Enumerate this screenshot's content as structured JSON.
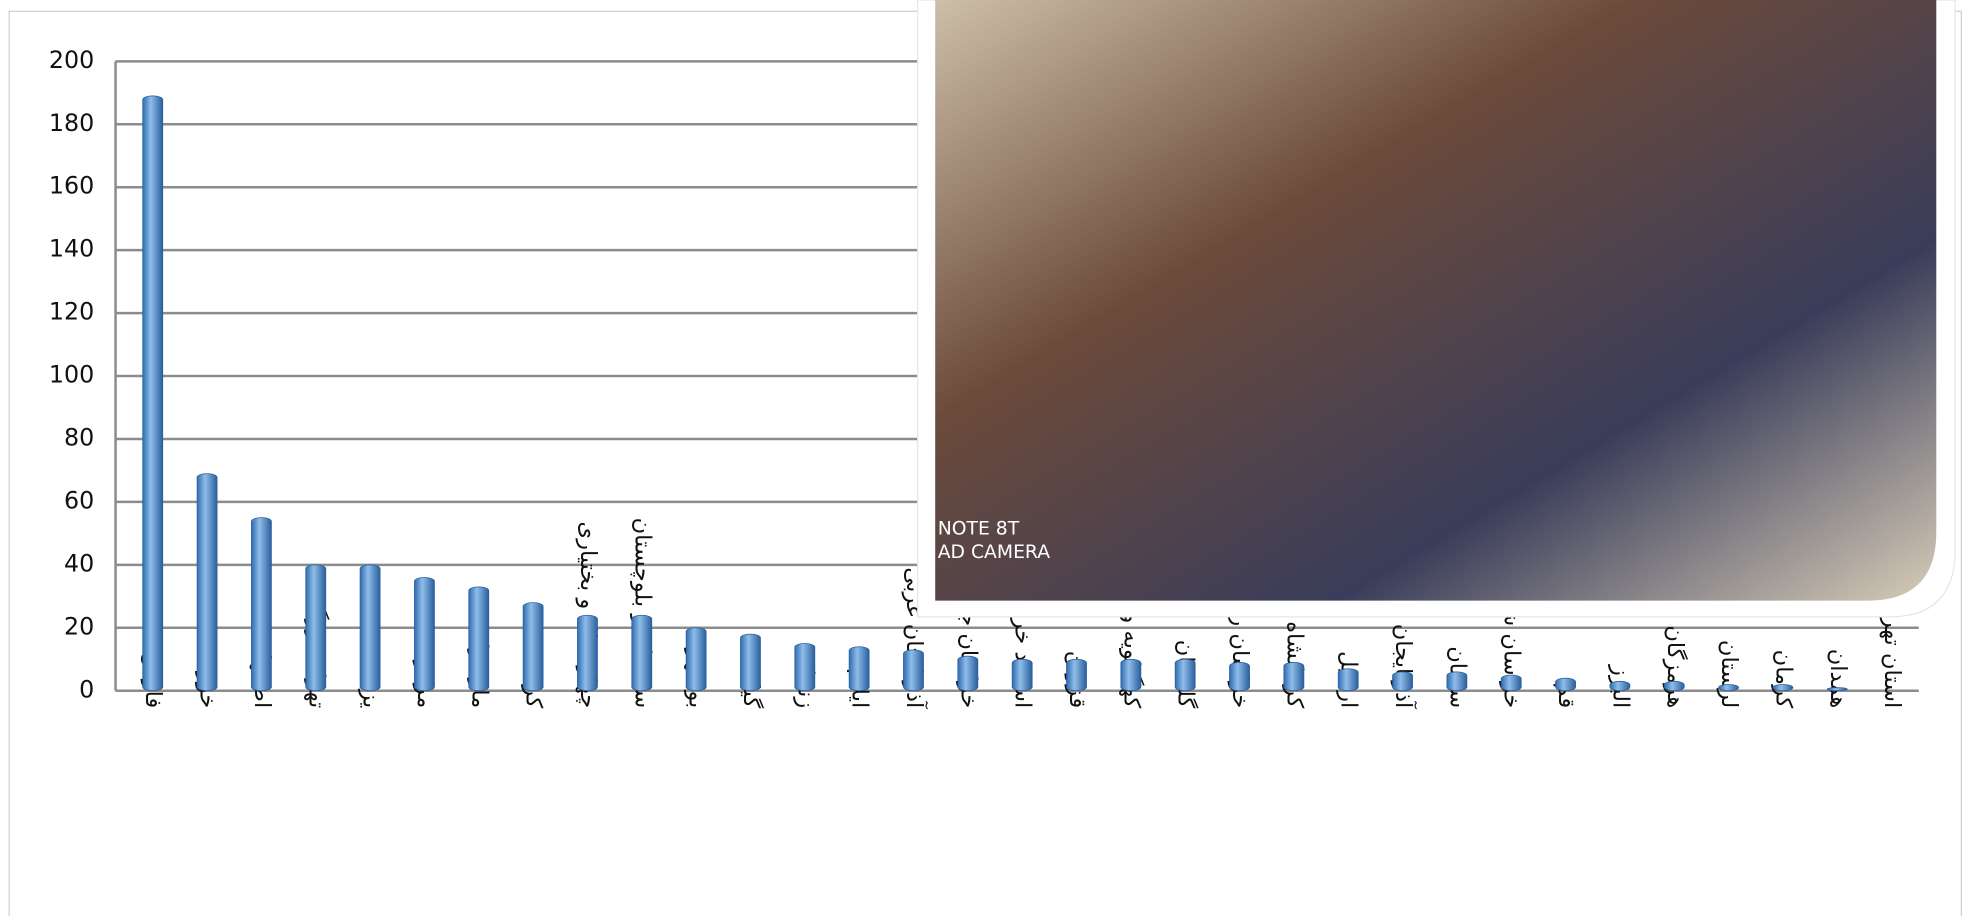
{
  "chart_data": {
    "type": "bar",
    "categories": [
      "فارس",
      "خوزستان",
      "اصفهان",
      "تهران بزرگ",
      "یزد",
      "مرکزی",
      "مازندران",
      "کردستان",
      "چهارمحال و بختیاری",
      "سیستان و بلوچستان",
      "بوشهر",
      "گیلان",
      "زنجان",
      "ایلام",
      "آذربایجان غربی",
      "خراسان جنوبی",
      "اساتید خراسانات",
      "قزوین",
      "کهگیلویه و بویراحمد",
      "گلستان",
      "خراسان رضوی",
      "کرمانشاه",
      "اردبیل",
      "آذربایجان شرقی",
      "سمنان",
      "خراسان شمالی",
      "قم",
      "البرز",
      "هرمزگان",
      "لرستان",
      "کرمان",
      "همدان",
      "استان تهران"
    ],
    "values": [
      189,
      69,
      55,
      40,
      40,
      36,
      33,
      28,
      24,
      24,
      20,
      18,
      15,
      14,
      13,
      11,
      10,
      10,
      10,
      10,
      9,
      9,
      7,
      6,
      6,
      5,
      4,
      3,
      3,
      2,
      2,
      1,
      0
    ],
    "color": "#4a86c8",
    "ylim": [
      0,
      200
    ],
    "yticks": [
      0,
      20,
      40,
      60,
      80,
      100,
      120,
      140,
      160,
      180,
      200
    ],
    "grid": true
  },
  "photo_overlay": {
    "caption_lines": [
      "NOTE 8T",
      "AD CAMERA"
    ]
  }
}
